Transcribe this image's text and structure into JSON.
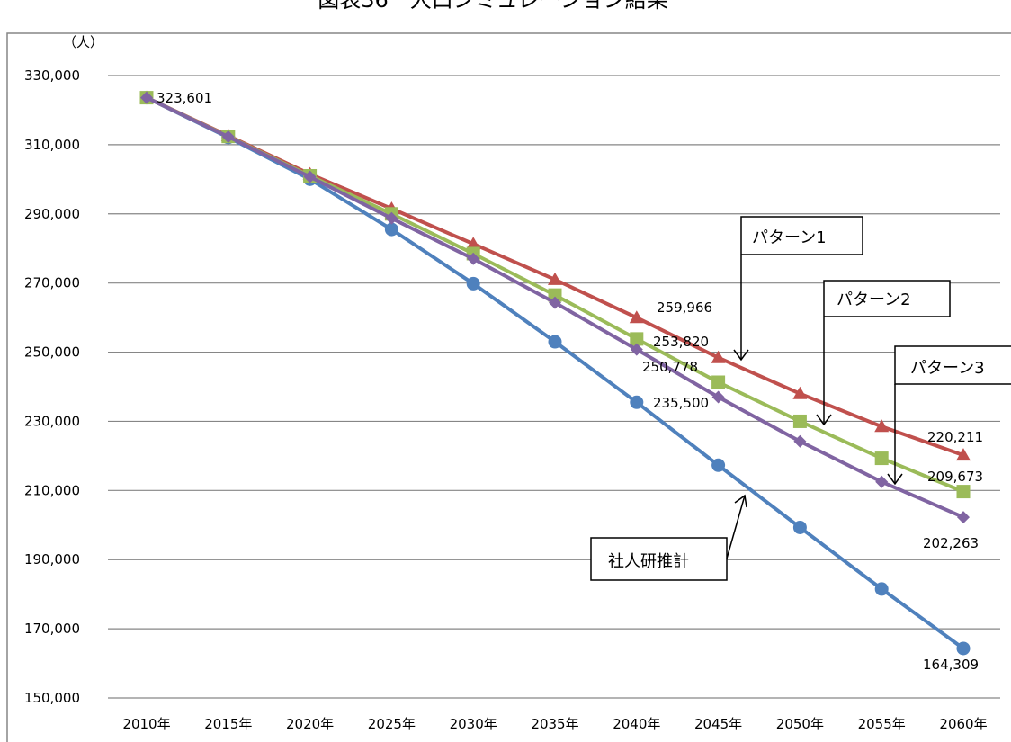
{
  "colors": {
    "series_shajinken": "#4F81BD",
    "series_pattern1": "#C0504D",
    "series_pattern2": "#9BBB59",
    "series_pattern3": "#8064A2",
    "gridline": "#868686",
    "frame": "#868686"
  },
  "chart_data": {
    "type": "line",
    "title": "図表36　人口シミュレーション結果",
    "ylabel": "（人）",
    "xlabel": "",
    "categories": [
      "2010年",
      "2015年",
      "2020年",
      "2025年",
      "2030年",
      "2035年",
      "2040年",
      "2045年",
      "2050年",
      "2055年",
      "2060年"
    ],
    "yticks": [
      "330,000",
      "310,000",
      "290,000",
      "270,000",
      "250,000",
      "230,000",
      "210,000",
      "190,000",
      "170,000",
      "150,000"
    ],
    "ylim": [
      150000,
      330000
    ],
    "grid": true,
    "series": [
      {
        "name": "社人研推計",
        "marker": "circle",
        "colorKey": "series_shajinken",
        "values": [
          323601,
          312100,
          300000,
          285500,
          269800,
          253000,
          235500,
          217300,
          199300,
          181500,
          164309
        ]
      },
      {
        "name": "パターン1",
        "marker": "triangle",
        "colorKey": "series_pattern1",
        "values": [
          323601,
          312600,
          301500,
          291500,
          281300,
          271000,
          259966,
          248400,
          238000,
          228500,
          220211
        ]
      },
      {
        "name": "パターン2",
        "marker": "square",
        "colorKey": "series_pattern2",
        "values": [
          323601,
          312400,
          301000,
          290000,
          278500,
          266500,
          253820,
          241300,
          230000,
          219300,
          209673
        ]
      },
      {
        "name": "パターン3",
        "marker": "diamond",
        "colorKey": "series_pattern3",
        "values": [
          323601,
          312300,
          300700,
          288700,
          277000,
          264300,
          250778,
          237000,
          224200,
          212500,
          202263
        ]
      }
    ],
    "data_labels": [
      "323,601",
      "259,966",
      "253,820",
      "250,778",
      "235,500",
      "220,211",
      "209,673",
      "202,263",
      "164,309"
    ],
    "callouts": [
      "パターン1",
      "パターン2",
      "パターン3",
      "社人研推計"
    ]
  }
}
